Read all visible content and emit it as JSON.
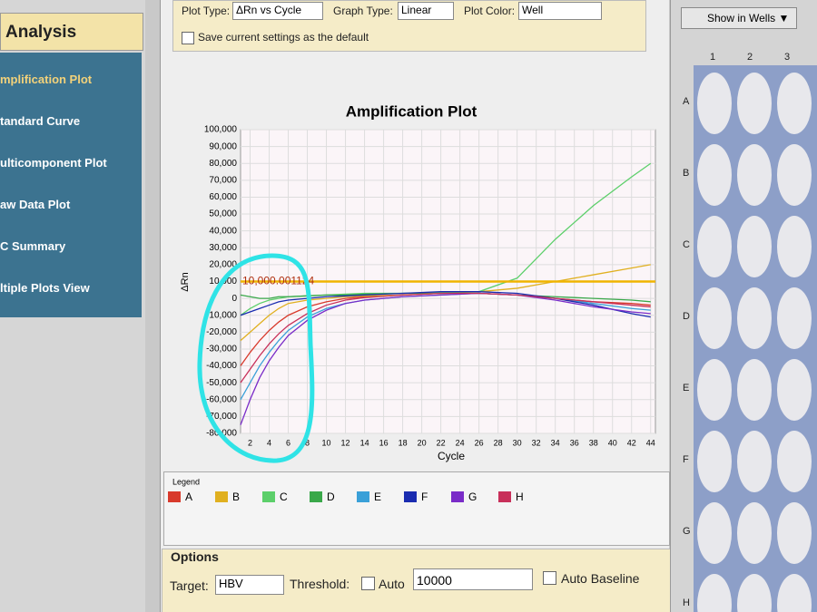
{
  "toolbar": {
    "plot_type_label": "Plot Type:",
    "plot_type": "ΔRn vs Cycle",
    "graph_type_label": "Graph Type:",
    "graph_type": "Linear",
    "plot_color_label": "Plot Color:",
    "plot_color": "Well",
    "save_default": "Save current settings as the default"
  },
  "sidebar": {
    "title": "Analysis",
    "items": [
      "mplification Plot",
      "tandard Curve",
      "ulticomponent Plot",
      "aw Data Plot",
      "C Summary",
      "ltiple Plots View"
    ]
  },
  "chart_data": {
    "type": "line",
    "title": "Amplification Plot",
    "x_label": "Cycle",
    "y_label": "ΔRn",
    "legend_title": "Legend",
    "x": [
      1,
      2,
      3,
      4,
      5,
      6,
      8,
      10,
      12,
      14,
      18,
      22,
      26,
      30,
      34,
      38,
      42,
      44
    ],
    "series": [
      {
        "name": "A",
        "color": "#d83a2c",
        "values": [
          -40000,
          -32000,
          -25000,
          -19000,
          -14000,
          -10000,
          -5000,
          -2000,
          0,
          1000,
          2000,
          3000,
          3000,
          2000,
          0,
          -2000,
          -3000,
          -4000
        ]
      },
      {
        "name": "B",
        "color": "#e0b020",
        "values": [
          -25000,
          -20000,
          -15000,
          -10000,
          -6000,
          -3000,
          -1000,
          0,
          1000,
          1500,
          2000,
          3000,
          4000,
          6000,
          10000,
          14000,
          18000,
          20000
        ]
      },
      {
        "name": "C",
        "color": "#5ccf6a",
        "values": [
          -10000,
          -6000,
          -3000,
          -1000,
          0,
          1000,
          1500,
          2000,
          2500,
          3000,
          3000,
          3500,
          4000,
          12000,
          35000,
          55000,
          72000,
          80000
        ]
      },
      {
        "name": "D",
        "color": "#3aa84a",
        "values": [
          2000,
          1000,
          0,
          0,
          1000,
          1000,
          1500,
          2000,
          2000,
          2500,
          3000,
          3000,
          3000,
          2000,
          1000,
          0,
          -1000,
          -2000
        ]
      },
      {
        "name": "E",
        "color": "#3aa0d8",
        "values": [
          -60000,
          -50000,
          -40000,
          -32000,
          -25000,
          -19000,
          -11000,
          -6000,
          -3000,
          -1000,
          1000,
          2000,
          3000,
          2000,
          0,
          -3000,
          -6000,
          -7000
        ]
      },
      {
        "name": "F",
        "color": "#1a2cb0",
        "values": [
          -10000,
          -8000,
          -6000,
          -4000,
          -2000,
          -1000,
          0,
          1000,
          1500,
          2000,
          3000,
          4000,
          4000,
          3000,
          0,
          -4000,
          -9000,
          -11000
        ]
      },
      {
        "name": "G",
        "color": "#7a2cc8",
        "values": [
          -75000,
          -60000,
          -47000,
          -37000,
          -29000,
          -22000,
          -13000,
          -7000,
          -3000,
          -1000,
          1000,
          2000,
          3000,
          2000,
          -1000,
          -5000,
          -8000,
          -9000
        ]
      },
      {
        "name": "H",
        "color": "#c8305a",
        "values": [
          -50000,
          -42000,
          -34000,
          -27000,
          -21000,
          -16000,
          -9000,
          -4000,
          -1000,
          500,
          2000,
          3000,
          3000,
          2000,
          0,
          -2000,
          -4000,
          -5000
        ]
      }
    ],
    "threshold": {
      "value": 10000,
      "label": "10,000.001124",
      "color": "#f0b400"
    },
    "xlim": [
      1,
      44.5
    ],
    "xticks": [
      2,
      4,
      6,
      8,
      10,
      12,
      14,
      16,
      18,
      20,
      22,
      24,
      26,
      28,
      30,
      32,
      34,
      36,
      38,
      40,
      42,
      44
    ],
    "ylim": [
      -80000,
      100000
    ],
    "yticks": [
      {
        "value": -80000,
        "label": "-80,000"
      },
      {
        "value": -70000,
        "label": "-70,000"
      },
      {
        "value": -60000,
        "label": "-60,000"
      },
      {
        "value": -50000,
        "label": "-50,000"
      },
      {
        "value": -40000,
        "label": "-40,000"
      },
      {
        "value": -30000,
        "label": "-30,000"
      },
      {
        "value": -20000,
        "label": "-20,000"
      },
      {
        "value": -10000,
        "label": "-10,000"
      },
      0,
      {
        "value": 10000,
        "label": "10,000"
      },
      {
        "value": 20000,
        "label": "20,000"
      },
      {
        "value": 30000,
        "label": "30,000"
      },
      {
        "value": 40000,
        "label": "40,000"
      },
      {
        "value": 50000,
        "label": "50,000"
      },
      {
        "value": 60000,
        "label": "60,000"
      },
      {
        "value": 70000,
        "label": "70,000"
      },
      {
        "value": 80000,
        "label": "80,000"
      },
      {
        "value": 90000,
        "label": "90,000"
      },
      {
        "value": 100000,
        "label": "100,000"
      }
    ],
    "grid": true
  },
  "options": {
    "title": "Options",
    "target_label": "Target:",
    "target": "HBV",
    "threshold_label": "Threshold:",
    "auto": "Auto",
    "threshold": "10000",
    "auto_baseline": "Auto Baseline"
  },
  "plate": {
    "button": "Show in Wells ▼",
    "columns": [
      "1",
      "2",
      "3"
    ],
    "rows": [
      "A",
      "B",
      "C",
      "D",
      "E",
      "F",
      "G",
      "H"
    ]
  }
}
